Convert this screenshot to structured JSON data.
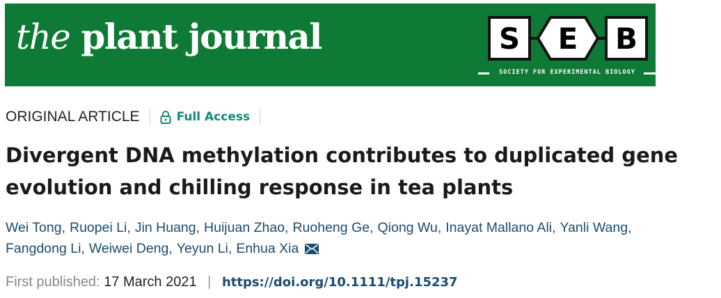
{
  "journal": {
    "name_the": "the",
    "name_rest": "plant journal",
    "society_letters": [
      "S",
      "E",
      "B"
    ],
    "society_name": "SOCIETY FOR EXPERIMENTAL BIOLOGY",
    "brand_color": "#0f7a36"
  },
  "article": {
    "type": "ORIGINAL ARTICLE",
    "access": "Full Access",
    "access_icon": "lock-icon",
    "title_line1": "Divergent DNA methylation contributes to duplicated gene",
    "title_line2": "evolution and chilling response in tea plants",
    "authors": [
      "Wei Tong,",
      "Ruopei Li,",
      "Jin Huang,",
      "Huijuan Zhao,",
      "Ruoheng Ge,",
      "Qiong Wu,",
      "Inayat Mallano Ali,",
      "Yanli Wang,",
      "Fangdong Li,",
      "Weiwei Deng,",
      "Yeyun Li,",
      "Enhua Xia"
    ],
    "corresponding_icon": "envelope-icon",
    "published_label": "First published:",
    "published_date": "17 March 2021",
    "separator": "|",
    "doi": "https://doi.org/10.1111/tpj.15237"
  }
}
